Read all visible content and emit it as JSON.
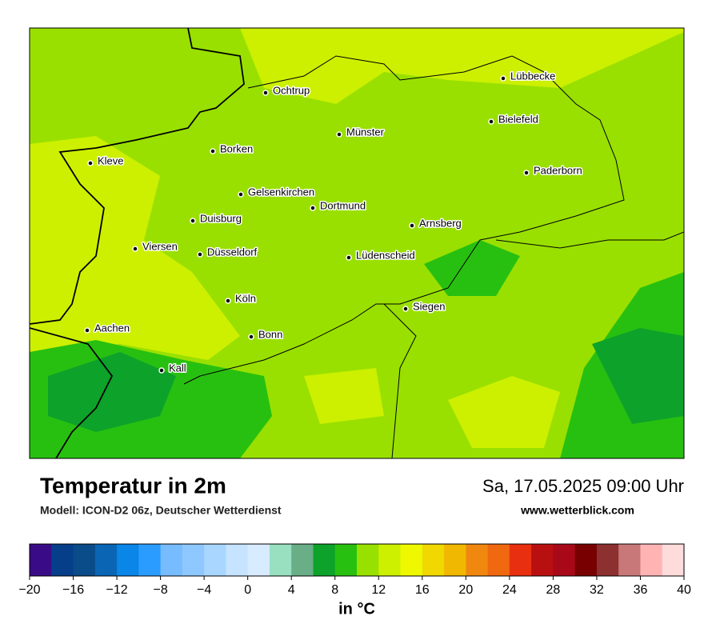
{
  "header": {
    "title": "Temperatur in 2m",
    "subtitle": "Modell: ICON-D2 06z, Deutscher Wetterdienst",
    "date": "Sa, 17.05.2025 09:00 Uhr",
    "website": "www.wetterblick.com"
  },
  "map": {
    "cities": [
      {
        "name": "Ochtrup"
      },
      {
        "name": "Lübbecke"
      },
      {
        "name": "Bielefeld"
      },
      {
        "name": "Münster"
      },
      {
        "name": "Borken"
      },
      {
        "name": "Kleve"
      },
      {
        "name": "Paderborn"
      },
      {
        "name": "Gelsenkirchen"
      },
      {
        "name": "Dortmund"
      },
      {
        "name": "Duisburg"
      },
      {
        "name": "Arnsberg"
      },
      {
        "name": "Viersen"
      },
      {
        "name": "Düsseldorf"
      },
      {
        "name": "Lüdenscheid"
      },
      {
        "name": "Köln"
      },
      {
        "name": "Siegen"
      },
      {
        "name": "Aachen"
      },
      {
        "name": "Bonn"
      },
      {
        "name": "Kall"
      }
    ]
  },
  "colorbar": {
    "lim": [
      -20,
      40
    ],
    "colors": [
      "#3a0b87",
      "#063e8a",
      "#0a4b8a",
      "#0a66b5",
      "#0a85e8",
      "#2a9cff",
      "#77bcff",
      "#8ec8ff",
      "#a8d6ff",
      "#c6e4ff",
      "#d8ecff",
      "#98e0c0",
      "#6aae88",
      "#0da22a",
      "#28c010",
      "#98e000",
      "#ccf000",
      "#f0f800",
      "#f0d800",
      "#f0b800",
      "#f08810",
      "#f06810",
      "#e83010",
      "#b81010",
      "#a80818",
      "#780000",
      "#8c3030",
      "#c87878",
      "#ffb4b4",
      "#ffdcdc"
    ],
    "ticks": [
      {
        "value": -20,
        "label": "−20"
      },
      {
        "value": -16,
        "label": "−16"
      },
      {
        "value": -12,
        "label": "−12"
      },
      {
        "value": -8,
        "label": "−8"
      },
      {
        "value": -4,
        "label": "−4"
      },
      0,
      4,
      8,
      12,
      16,
      20,
      24,
      28,
      32,
      36,
      40
    ],
    "unit_label": "in °C"
  }
}
